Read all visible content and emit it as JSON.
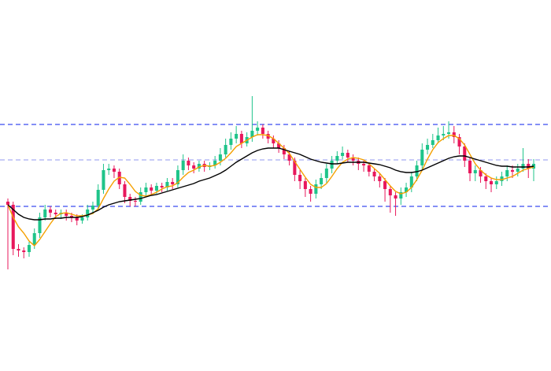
{
  "chart_data": {
    "type": "candlestick",
    "ylim": [
      0,
      466
    ],
    "up_color": "#1fc48a",
    "down_color": "#e8185c",
    "ohlc": {
      "open": [
        210,
        206,
        150,
        148,
        146,
        155,
        170,
        190,
        200,
        196,
        194,
        196,
        192,
        190,
        186,
        190,
        200,
        205,
        225,
        250,
        252,
        248,
        232,
        216,
        211,
        210,
        222,
        228,
        224,
        230,
        228,
        235,
        232,
        250,
        262,
        256,
        252,
        258,
        254,
        256,
        262,
        270,
        282,
        290,
        296,
        284,
        292,
        300,
        304,
        296,
        290,
        284,
        278,
        270,
        262,
        244,
        236,
        226,
        220,
        232,
        240,
        252,
        262,
        268,
        272,
        266,
        262,
        258,
        256,
        248,
        242,
        236,
        226,
        218,
        214,
        222,
        228,
        242,
        256,
        276,
        282,
        288,
        294,
        296,
        298,
        292,
        280,
        262,
        246,
        250,
        242,
        236,
        232,
        236,
        242,
        250,
        248,
        252,
        258,
        252
      ],
      "high": [
        214,
        210,
        156,
        152,
        159,
        176,
        196,
        206,
        204,
        200,
        200,
        200,
        196,
        194,
        194,
        206,
        210,
        232,
        258,
        258,
        256,
        252,
        236,
        220,
        216,
        228,
        234,
        232,
        234,
        234,
        240,
        240,
        256,
        270,
        266,
        260,
        262,
        262,
        260,
        268,
        278,
        290,
        298,
        306,
        300,
        298,
        344,
        312,
        308,
        300,
        294,
        288,
        282,
        274,
        266,
        250,
        240,
        230,
        238,
        246,
        258,
        268,
        274,
        280,
        276,
        270,
        266,
        262,
        258,
        252,
        246,
        240,
        230,
        222,
        228,
        234,
        248,
        262,
        284,
        290,
        296,
        304,
        306,
        312,
        306,
        296,
        284,
        266,
        256,
        254,
        246,
        240,
        242,
        248,
        256,
        256,
        258,
        278,
        264,
        264
      ],
      "low": [
        124,
        142,
        140,
        138,
        140,
        150,
        164,
        186,
        190,
        188,
        188,
        186,
        184,
        180,
        182,
        186,
        194,
        200,
        220,
        244,
        240,
        226,
        208,
        204,
        204,
        206,
        216,
        218,
        220,
        222,
        224,
        226,
        228,
        244,
        250,
        246,
        248,
        248,
        250,
        252,
        256,
        266,
        276,
        284,
        278,
        280,
        286,
        294,
        290,
        284,
        278,
        272,
        264,
        256,
        236,
        226,
        216,
        210,
        214,
        226,
        234,
        246,
        258,
        264,
        260,
        256,
        250,
        248,
        242,
        236,
        228,
        210,
        196,
        192,
        206,
        216,
        222,
        236,
        250,
        270,
        278,
        284,
        288,
        290,
        284,
        270,
        254,
        236,
        236,
        234,
        226,
        222,
        226,
        230,
        236,
        240,
        242,
        248,
        240,
        236
      ],
      "close": [
        206,
        150,
        148,
        146,
        155,
        170,
        190,
        200,
        196,
        194,
        196,
        192,
        190,
        186,
        190,
        200,
        205,
        225,
        250,
        252,
        248,
        232,
        216,
        211,
        210,
        222,
        228,
        224,
        230,
        228,
        235,
        232,
        250,
        262,
        256,
        252,
        258,
        254,
        256,
        262,
        270,
        282,
        290,
        296,
        284,
        292,
        300,
        304,
        296,
        290,
        284,
        278,
        270,
        262,
        244,
        236,
        226,
        220,
        232,
        240,
        252,
        262,
        268,
        272,
        266,
        262,
        258,
        256,
        248,
        242,
        236,
        226,
        218,
        214,
        222,
        228,
        242,
        256,
        276,
        282,
        288,
        294,
        296,
        298,
        292,
        280,
        262,
        246,
        250,
        242,
        236,
        232,
        236,
        242,
        250,
        248,
        252,
        258,
        252,
        258
      ]
    },
    "lines": [
      {
        "color": "#f5a000",
        "values": [
          206,
          190,
          178,
          170,
          160,
          154,
          162,
          172,
          182,
          191,
          195,
          196,
          194,
          192,
          192,
          193,
          195,
          201,
          214,
          226,
          236,
          241,
          240,
          232,
          223,
          218,
          217,
          219,
          222,
          226,
          229,
          230,
          234,
          241,
          247,
          250,
          254,
          256,
          255,
          256,
          260,
          265,
          272,
          280,
          284,
          288,
          292,
          295,
          295,
          294,
          290,
          284,
          278,
          271,
          261,
          251,
          241,
          232,
          228,
          228,
          233,
          242,
          252,
          260,
          264,
          266,
          265,
          263,
          258,
          252,
          246,
          238,
          230,
          223,
          220,
          222,
          228,
          238,
          250,
          264,
          276,
          285,
          290,
          294,
          294,
          290,
          282,
          270,
          258,
          250,
          244,
          240,
          238,
          238,
          240,
          242,
          246,
          250,
          252,
          254
        ]
      },
      {
        "color": "#000000",
        "values": [
          206,
          200,
          194,
          190,
          188,
          187,
          187,
          188,
          188,
          189,
          189,
          190,
          190,
          190,
          191,
          193,
          196,
          199,
          203,
          206,
          208,
          210,
          211,
          212,
          213,
          214,
          216,
          218,
          219,
          221,
          223,
          225,
          227,
          229,
          231,
          233,
          236,
          238,
          240,
          243,
          246,
          250,
          255,
          260,
          264,
          268,
          272,
          275,
          277,
          278,
          278,
          278,
          276,
          274,
          272,
          270,
          267,
          264,
          262,
          260,
          259,
          258,
          258,
          259,
          260,
          260,
          260,
          260,
          259,
          258,
          257,
          255,
          253,
          250,
          248,
          247,
          247,
          248,
          250,
          253,
          256,
          259,
          262,
          265,
          267,
          268,
          268,
          266,
          264,
          262,
          260,
          258,
          256,
          255,
          255,
          254,
          254,
          254,
          254,
          255
        ]
      }
    ],
    "levels": [
      {
        "value": 308,
        "color": "#3b4cf0"
      },
      {
        "value": 263,
        "color": "#a8acf2"
      },
      {
        "value": 204,
        "color": "#3b4cf0"
      }
    ]
  }
}
